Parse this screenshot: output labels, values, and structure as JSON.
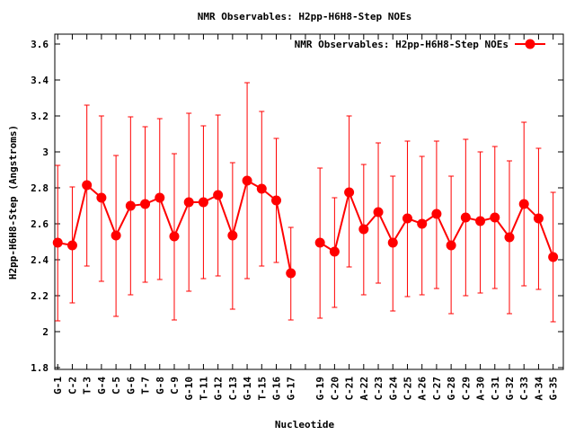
{
  "chart_data": {
    "type": "line",
    "title": "NMR Observables: H2pp-H6H8-Step NOEs",
    "xlabel": "Nucleotide",
    "ylabel": "H2pp-H6H8-Step (Angstroms)",
    "legend": {
      "label": "NMR Observables: H2pp-H6H8-Step NOEs",
      "placement": "top-right"
    },
    "color": "#ff0000",
    "ylim": [
      1.79,
      3.655
    ],
    "xlim": [
      0.8,
      35.7
    ],
    "yticks": [
      "1.8",
      "2",
      "2.2",
      "2.4",
      "2.6",
      "2.8",
      "3",
      "3.2",
      "3.4",
      "3.6"
    ],
    "ytick_values": [
      1.8,
      2,
      2.2,
      2.4,
      2.6,
      2.8,
      3,
      3.2,
      3.4,
      3.6
    ],
    "x": [
      1,
      2,
      3,
      4,
      5,
      6,
      7,
      8,
      9,
      10,
      11,
      12,
      13,
      14,
      15,
      16,
      17,
      19,
      20,
      21,
      22,
      23,
      24,
      25,
      26,
      27,
      28,
      29,
      30,
      31,
      32,
      33,
      34,
      35
    ],
    "categories": [
      "G-1",
      "C-2",
      "T-3",
      "G-4",
      "C-5",
      "G-6",
      "T-7",
      "G-8",
      "C-9",
      "G-10",
      "T-11",
      "G-12",
      "C-13",
      "G-14",
      "T-15",
      "G-16",
      "G-17",
      "G-19",
      "C-20",
      "C-21",
      "A-22",
      "C-23",
      "G-24",
      "C-25",
      "A-26",
      "C-27",
      "G-28",
      "C-29",
      "A-30",
      "C-31",
      "G-32",
      "C-33",
      "A-34",
      "G-35"
    ],
    "values": [
      2.495,
      2.48,
      2.815,
      2.745,
      2.535,
      2.7,
      2.71,
      2.745,
      2.53,
      2.72,
      2.72,
      2.76,
      2.535,
      2.84,
      2.795,
      2.73,
      2.325,
      2.495,
      2.445,
      2.775,
      2.57,
      2.665,
      2.495,
      2.63,
      2.6,
      2.655,
      2.48,
      2.635,
      2.615,
      2.635,
      2.525,
      2.71,
      2.63,
      2.415
    ],
    "err_high": [
      2.925,
      2.805,
      3.26,
      3.2,
      2.98,
      3.195,
      3.14,
      3.185,
      2.99,
      3.215,
      3.145,
      3.205,
      2.94,
      3.385,
      3.225,
      3.075,
      2.58,
      2.91,
      2.745,
      3.2,
      2.93,
      3.05,
      2.865,
      3.06,
      2.975,
      3.06,
      2.865,
      3.07,
      3.0,
      3.03,
      2.95,
      3.165,
      3.02,
      2.775
    ],
    "err_low": [
      2.06,
      2.16,
      2.365,
      2.28,
      2.085,
      2.205,
      2.275,
      2.29,
      2.065,
      2.225,
      2.295,
      2.31,
      2.125,
      2.295,
      2.365,
      2.385,
      2.065,
      2.075,
      2.135,
      2.36,
      2.205,
      2.27,
      2.115,
      2.195,
      2.205,
      2.24,
      2.1,
      2.2,
      2.215,
      2.24,
      2.1,
      2.255,
      2.235,
      2.055
    ]
  }
}
